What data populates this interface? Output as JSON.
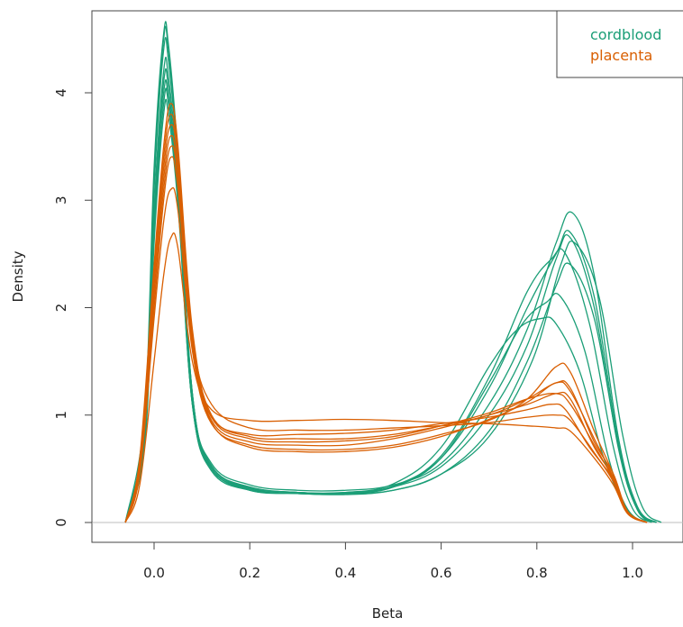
{
  "chart_data": {
    "type": "line",
    "title": "",
    "xlabel": "Beta",
    "ylabel": "Density",
    "xlim": [
      -0.1,
      1.08
    ],
    "ylim": [
      -0.15,
      4.7
    ],
    "x_ticks": [
      0.0,
      0.2,
      0.4,
      0.6,
      0.8,
      1.0
    ],
    "x_tick_labels": [
      "0.0",
      "0.2",
      "0.4",
      "0.6",
      "0.8",
      "1.0"
    ],
    "y_ticks": [
      0,
      1,
      2,
      3,
      4
    ],
    "y_tick_labels": [
      "0",
      "1",
      "2",
      "3",
      "4"
    ],
    "grid": false,
    "baseline": 0,
    "legend": {
      "position": "top-right",
      "entries": [
        {
          "label": "cordblood",
          "color": "#1b9e77"
        },
        {
          "label": "placenta",
          "color": "#d95f02"
        }
      ]
    },
    "groups": [
      {
        "name": "cordblood",
        "color": "#1b9e77",
        "curves": [
          {
            "x": [
              -0.06,
              -0.02,
              0.0,
              0.02,
              0.03,
              0.05,
              0.08,
              0.12,
              0.2,
              0.3,
              0.4,
              0.5,
              0.6,
              0.7,
              0.78,
              0.84,
              0.875,
              0.92,
              0.97,
              1.01,
              1.05
            ],
            "y": [
              0,
              1.0,
              3.3,
              4.55,
              4.45,
              3.4,
              1.2,
              0.55,
              0.35,
              0.3,
              0.3,
              0.35,
              0.55,
              1.1,
              1.8,
              2.6,
              2.88,
              2.3,
              0.8,
              0.15,
              0
            ]
          },
          {
            "x": [
              -0.06,
              -0.02,
              0.0,
              0.02,
              0.03,
              0.05,
              0.08,
              0.12,
              0.2,
              0.3,
              0.4,
              0.5,
              0.6,
              0.7,
              0.78,
              0.84,
              0.87,
              0.92,
              0.97,
              1.01,
              1.05
            ],
            "y": [
              0,
              0.9,
              3.1,
              4.4,
              4.3,
              3.3,
              1.2,
              0.5,
              0.33,
              0.28,
              0.28,
              0.34,
              0.6,
              1.25,
              2.0,
              2.5,
              2.7,
              2.1,
              0.75,
              0.12,
              0
            ]
          },
          {
            "x": [
              -0.06,
              -0.02,
              0.0,
              0.02,
              0.03,
              0.05,
              0.08,
              0.12,
              0.2,
              0.3,
              0.4,
              0.5,
              0.6,
              0.7,
              0.78,
              0.84,
              0.87,
              0.92,
              0.97,
              1.01,
              1.05
            ],
            "y": [
              0,
              0.8,
              2.9,
              4.2,
              4.15,
              3.2,
              1.15,
              0.52,
              0.32,
              0.28,
              0.27,
              0.33,
              0.52,
              1.0,
              1.65,
              2.45,
              2.65,
              2.0,
              0.7,
              0.12,
              0
            ]
          },
          {
            "x": [
              -0.06,
              -0.02,
              0.0,
              0.02,
              0.03,
              0.05,
              0.08,
              0.12,
              0.2,
              0.3,
              0.4,
              0.5,
              0.6,
              0.7,
              0.78,
              0.83,
              0.86,
              0.91,
              0.96,
              1.0,
              1.04
            ],
            "y": [
              0,
              0.8,
              2.8,
              4.0,
              3.95,
              3.05,
              1.1,
              0.5,
              0.31,
              0.27,
              0.27,
              0.34,
              0.62,
              1.35,
              2.15,
              2.45,
              2.5,
              1.85,
              0.7,
              0.13,
              0
            ]
          },
          {
            "x": [
              -0.06,
              -0.02,
              0.0,
              0.02,
              0.03,
              0.05,
              0.08,
              0.12,
              0.2,
              0.3,
              0.4,
              0.5,
              0.6,
              0.7,
              0.78,
              0.84,
              0.87,
              0.92,
              0.97,
              1.01,
              1.05
            ],
            "y": [
              0,
              0.7,
              2.6,
              3.8,
              3.8,
              2.95,
              1.1,
              0.48,
              0.3,
              0.27,
              0.26,
              0.3,
              0.45,
              0.85,
              1.5,
              2.2,
              2.4,
              1.9,
              0.72,
              0.13,
              0
            ]
          },
          {
            "x": [
              -0.06,
              -0.02,
              0.0,
              0.02,
              0.03,
              0.05,
              0.08,
              0.12,
              0.2,
              0.3,
              0.4,
              0.5,
              0.6,
              0.7,
              0.77,
              0.82,
              0.85,
              0.9,
              0.95,
              0.99,
              1.03
            ],
            "y": [
              0,
              0.75,
              2.7,
              3.9,
              3.9,
              3.0,
              1.1,
              0.5,
              0.3,
              0.27,
              0.27,
              0.33,
              0.6,
              1.3,
              1.85,
              2.05,
              2.1,
              1.6,
              0.6,
              0.12,
              0
            ]
          },
          {
            "x": [
              -0.06,
              -0.02,
              0.0,
              0.02,
              0.03,
              0.05,
              0.08,
              0.12,
              0.2,
              0.3,
              0.4,
              0.5,
              0.6,
              0.7,
              0.79,
              0.85,
              0.88,
              0.93,
              0.98,
              1.02,
              1.06
            ],
            "y": [
              0,
              0.9,
              3.2,
              4.5,
              4.4,
              3.35,
              1.2,
              0.53,
              0.33,
              0.28,
              0.27,
              0.3,
              0.45,
              0.8,
              1.5,
              2.4,
              2.6,
              2.1,
              0.8,
              0.15,
              0
            ]
          },
          {
            "x": [
              -0.06,
              -0.02,
              0.0,
              0.02,
              0.03,
              0.05,
              0.08,
              0.12,
              0.2,
              0.3,
              0.4,
              0.5,
              0.6,
              0.7,
              0.76,
              0.81,
              0.84,
              0.89,
              0.94,
              0.99,
              1.03
            ],
            "y": [
              0,
              0.8,
              2.9,
              4.1,
              4.05,
              3.1,
              1.15,
              0.5,
              0.32,
              0.28,
              0.28,
              0.36,
              0.7,
              1.45,
              1.8,
              1.9,
              1.85,
              1.4,
              0.6,
              0.12,
              0
            ]
          }
        ]
      },
      {
        "name": "placenta",
        "color": "#d95f02",
        "curves": [
          {
            "x": [
              -0.06,
              -0.03,
              0.0,
              0.02,
              0.035,
              0.05,
              0.08,
              0.12,
              0.2,
              0.3,
              0.4,
              0.5,
              0.6,
              0.7,
              0.78,
              0.84,
              0.87,
              0.92,
              0.96,
              0.99,
              1.03
            ],
            "y": [
              0,
              0.6,
              2.4,
              3.5,
              3.9,
              3.5,
              1.8,
              1.0,
              0.8,
              0.78,
              0.78,
              0.82,
              0.9,
              1.0,
              1.15,
              1.3,
              1.25,
              0.75,
              0.45,
              0.1,
              0
            ]
          },
          {
            "x": [
              -0.06,
              -0.03,
              0.0,
              0.02,
              0.035,
              0.05,
              0.08,
              0.12,
              0.2,
              0.3,
              0.4,
              0.5,
              0.6,
              0.7,
              0.78,
              0.84,
              0.87,
              0.92,
              0.96,
              0.99,
              1.03
            ],
            "y": [
              0,
              0.5,
              2.2,
              3.2,
              3.6,
              3.25,
              1.7,
              0.95,
              0.75,
              0.72,
              0.72,
              0.78,
              0.88,
              1.0,
              1.1,
              1.2,
              1.15,
              0.7,
              0.42,
              0.1,
              0
            ]
          },
          {
            "x": [
              -0.06,
              -0.03,
              0.0,
              0.02,
              0.035,
              0.05,
              0.08,
              0.12,
              0.2,
              0.3,
              0.4,
              0.5,
              0.6,
              0.7,
              0.78,
              0.83,
              0.86,
              0.91,
              0.96,
              0.99,
              1.03
            ],
            "y": [
              0,
              0.5,
              2.0,
              3.0,
              3.4,
              3.1,
              1.65,
              0.98,
              0.82,
              0.82,
              0.83,
              0.86,
              0.92,
              0.98,
              1.05,
              1.1,
              1.05,
              0.7,
              0.4,
              0.1,
              0
            ]
          },
          {
            "x": [
              -0.06,
              -0.03,
              0.0,
              0.02,
              0.035,
              0.05,
              0.08,
              0.12,
              0.2,
              0.3,
              0.4,
              0.5,
              0.6,
              0.7,
              0.78,
              0.84,
              0.87,
              0.92,
              0.96,
              0.99,
              1.03
            ],
            "y": [
              0,
              0.45,
              1.9,
              2.8,
              3.1,
              2.9,
              1.6,
              0.92,
              0.72,
              0.68,
              0.68,
              0.72,
              0.82,
              0.95,
              1.15,
              1.45,
              1.4,
              0.85,
              0.45,
              0.1,
              0
            ]
          },
          {
            "x": [
              -0.06,
              -0.03,
              0.0,
              0.02,
              0.035,
              0.05,
              0.08,
              0.12,
              0.2,
              0.3,
              0.4,
              0.5,
              0.6,
              0.7,
              0.78,
              0.84,
              0.87,
              0.92,
              0.96,
              0.99,
              1.03
            ],
            "y": [
              0,
              0.35,
              1.5,
              2.3,
              2.65,
              2.55,
              1.5,
              1.05,
              0.95,
              0.95,
              0.96,
              0.95,
              0.93,
              0.92,
              0.9,
              0.88,
              0.85,
              0.6,
              0.35,
              0.08,
              0
            ]
          },
          {
            "x": [
              -0.06,
              -0.03,
              0.0,
              0.02,
              0.035,
              0.05,
              0.08,
              0.12,
              0.2,
              0.3,
              0.4,
              0.5,
              0.6,
              0.7,
              0.78,
              0.84,
              0.87,
              0.92,
              0.96,
              0.99,
              1.03
            ],
            "y": [
              0,
              0.55,
              2.3,
              3.4,
              3.8,
              3.4,
              1.75,
              0.98,
              0.78,
              0.75,
              0.76,
              0.8,
              0.9,
              1.02,
              1.15,
              1.2,
              1.1,
              0.72,
              0.4,
              0.1,
              0
            ]
          },
          {
            "x": [
              -0.06,
              -0.03,
              0.0,
              0.02,
              0.035,
              0.05,
              0.08,
              0.12,
              0.2,
              0.3,
              0.4,
              0.5,
              0.6,
              0.7,
              0.78,
              0.84,
              0.87,
              0.92,
              0.96,
              0.99,
              1.03
            ],
            "y": [
              0,
              0.5,
              2.1,
              3.1,
              3.5,
              3.2,
              1.72,
              1.1,
              0.88,
              0.86,
              0.86,
              0.88,
              0.9,
              0.93,
              0.98,
              1.0,
              0.95,
              0.65,
              0.38,
              0.09,
              0
            ]
          },
          {
            "x": [
              -0.06,
              -0.03,
              0.0,
              0.02,
              0.035,
              0.05,
              0.08,
              0.12,
              0.2,
              0.3,
              0.4,
              0.5,
              0.6,
              0.7,
              0.78,
              0.84,
              0.87,
              0.92,
              0.96,
              0.99,
              1.03
            ],
            "y": [
              0,
              0.55,
              2.25,
              3.3,
              3.7,
              3.35,
              1.7,
              0.93,
              0.7,
              0.66,
              0.66,
              0.7,
              0.8,
              0.96,
              1.12,
              1.3,
              1.22,
              0.78,
              0.42,
              0.1,
              0
            ]
          }
        ]
      }
    ]
  }
}
